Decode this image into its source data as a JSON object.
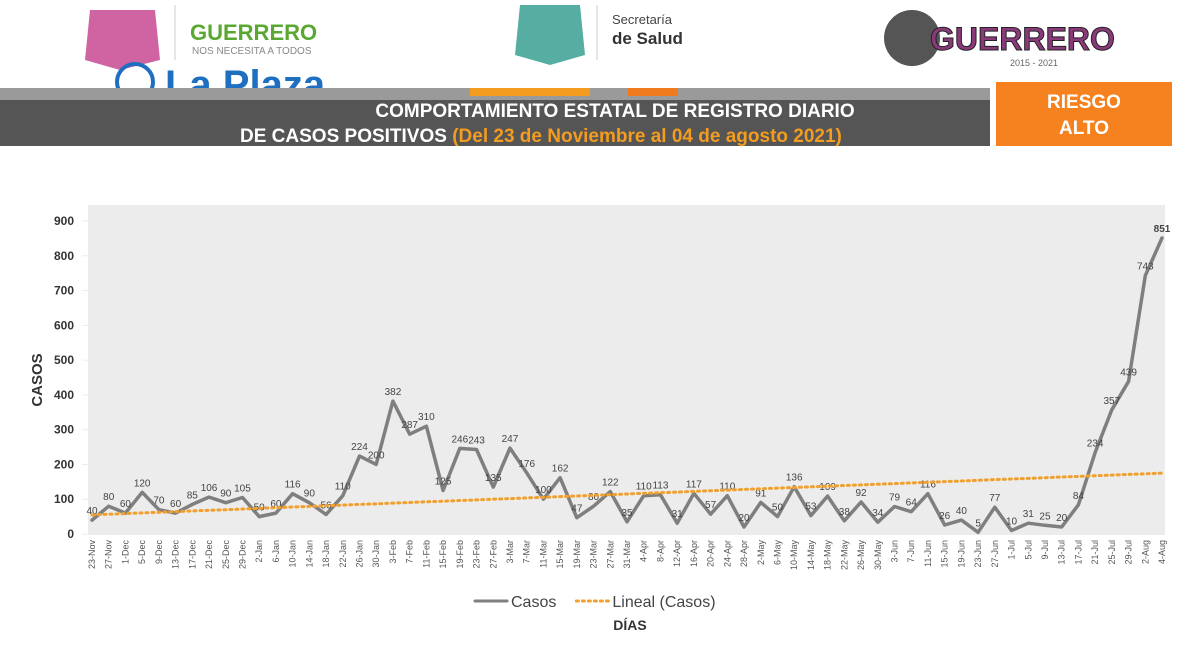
{
  "header": {
    "left_logo_title": "GUERRERO",
    "left_logo_subtitle": "NOS NECESITA A TODOS",
    "watermark": "La Plaza",
    "center_line1": "Secretaría",
    "center_line2": "de Salud",
    "right_logo_title": "GUERRERO",
    "right_logo_years": "2015 - 2021",
    "risk_line1": "RIESGO",
    "risk_line2": "ALTO"
  },
  "chart_data": {
    "type": "line",
    "title_line1": "COMPORTAMIENTO ESTATAL DE REGISTRO DIARIO",
    "title_line2": "DE CASOS POSITIVOS",
    "title_range": "(Del 23 de Noviembre al 04 de agosto 2021)",
    "y_label": "CASOS",
    "x_label": "DÍAS",
    "ylim": [
      0,
      900
    ],
    "yticks": [
      0,
      100,
      200,
      300,
      400,
      500,
      600,
      700,
      800,
      900
    ],
    "categories": [
      "23-Nov",
      "27-Nov",
      "1-Dec",
      "5-Dec",
      "9-Dec",
      "13-Dec",
      "17-Dec",
      "21-Dec",
      "25-Dec",
      "29-Dec",
      "2-Jan",
      "6-Jan",
      "10-Jan",
      "14-Jan",
      "18-Jan",
      "22-Jan",
      "26-Jan",
      "30-Jan",
      "3-Feb",
      "7-Feb",
      "11-Feb",
      "15-Feb",
      "19-Feb",
      "23-Feb",
      "27-Feb",
      "3-Mar",
      "7-Mar",
      "11-Mar",
      "15-Mar",
      "19-Mar",
      "23-Mar",
      "27-Mar",
      "31-Mar",
      "4-Apr",
      "8-Apr",
      "12-Apr",
      "16-Apr",
      "20-Apr",
      "24-Apr",
      "28-Apr",
      "2-May",
      "6-May",
      "10-May",
      "14-May",
      "18-May",
      "22-May",
      "26-May",
      "30-May",
      "3-Jun",
      "7-Jun",
      "11-Jun",
      "15-Jun",
      "19-Jun",
      "23-Jun",
      "27-Jun",
      "1-Jul",
      "5-Jul",
      "9-Jul",
      "13-Jul",
      "17-Jul",
      "21-Jul",
      "25-Jul",
      "29-Jul",
      "2-Aug",
      "4-Aug"
    ],
    "series": [
      {
        "name": "Casos",
        "color": "#7f7f7f",
        "style": "solid",
        "values": [
          40,
          80,
          60,
          120,
          70,
          60,
          85,
          106,
          90,
          105,
          50,
          60,
          116,
          90,
          56,
          110,
          224,
          200,
          382,
          287,
          310,
          125,
          246,
          243,
          135,
          247,
          176,
          100,
          162,
          47,
          80,
          122,
          35,
          110,
          113,
          31,
          117,
          57,
          110,
          20,
          91,
          50,
          136,
          53,
          109,
          38,
          92,
          34,
          79,
          64,
          116,
          26,
          40,
          5,
          77,
          10,
          31,
          25,
          20,
          84,
          234,
          357,
          439,
          743,
          851
        ]
      },
      {
        "name": "Lineal (Casos)",
        "color": "#f0a030",
        "style": "dotted",
        "values": [
          55,
          56.9,
          58.8,
          60.6,
          62.5,
          64.4,
          66.3,
          68.1,
          70,
          71.9,
          73.8,
          75.6,
          77.5,
          79.4,
          81.3,
          83.1,
          85,
          86.9,
          88.8,
          90.6,
          92.5,
          94.4,
          96.3,
          98.1,
          100,
          101.9,
          103.8,
          105.6,
          107.5,
          109.4,
          111.3,
          113.1,
          115,
          116.9,
          118.8,
          120.6,
          122.5,
          124.4,
          126.3,
          128.1,
          130,
          131.9,
          133.8,
          135.6,
          137.5,
          139.4,
          141.3,
          143.1,
          145,
          146.9,
          148.8,
          150.6,
          152.5,
          154.4,
          156.3,
          158.1,
          160,
          161.9,
          163.8,
          165.6,
          167.5,
          169.4,
          171.3,
          173.1,
          175
        ]
      }
    ]
  }
}
